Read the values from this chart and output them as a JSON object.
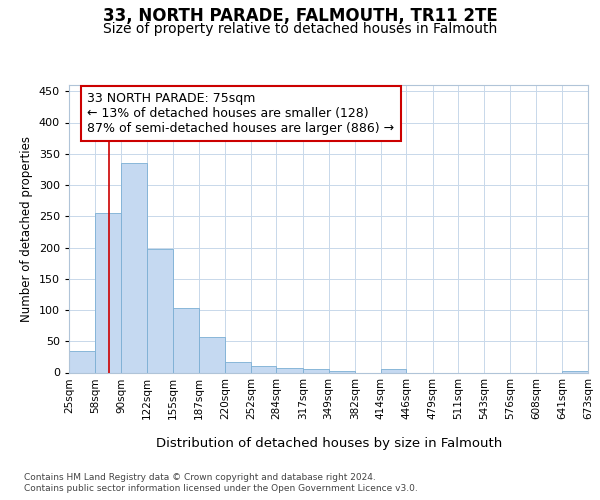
{
  "title": "33, NORTH PARADE, FALMOUTH, TR11 2TE",
  "subtitle": "Size of property relative to detached houses in Falmouth",
  "xlabel": "Distribution of detached houses by size in Falmouth",
  "ylabel": "Number of detached properties",
  "footnote1": "Contains HM Land Registry data © Crown copyright and database right 2024.",
  "footnote2": "Contains public sector information licensed under the Open Government Licence v3.0.",
  "bin_edges": [
    25,
    58,
    90,
    122,
    155,
    187,
    220,
    252,
    284,
    317,
    349,
    382,
    414,
    446,
    479,
    511,
    543,
    576,
    608,
    641,
    673
  ],
  "bar_heights": [
    34,
    256,
    335,
    197,
    103,
    57,
    17,
    10,
    8,
    5,
    3,
    0,
    5,
    0,
    0,
    0,
    0,
    0,
    0,
    3
  ],
  "bar_color": "#c5d9f1",
  "bar_edge_color": "#7bafd4",
  "property_size": 75,
  "vline_color": "#cc0000",
  "annotation_line1": "33 NORTH PARADE: 75sqm",
  "annotation_line2": "← 13% of detached houses are smaller (128)",
  "annotation_line3": "87% of semi-detached houses are larger (886) →",
  "annotation_box_color": "#ffffff",
  "annotation_box_edge_color": "#cc0000",
  "ylim": [
    0,
    460
  ],
  "yticks": [
    0,
    50,
    100,
    150,
    200,
    250,
    300,
    350,
    400,
    450
  ],
  "bg_color": "#ffffff",
  "grid_color": "#c8d8ea",
  "title_fontsize": 12,
  "subtitle_fontsize": 10,
  "ylabel_fontsize": 8.5,
  "xlabel_fontsize": 9.5,
  "tick_fontsize": 7.5,
  "annotation_fontsize": 9,
  "footnote_fontsize": 6.5
}
